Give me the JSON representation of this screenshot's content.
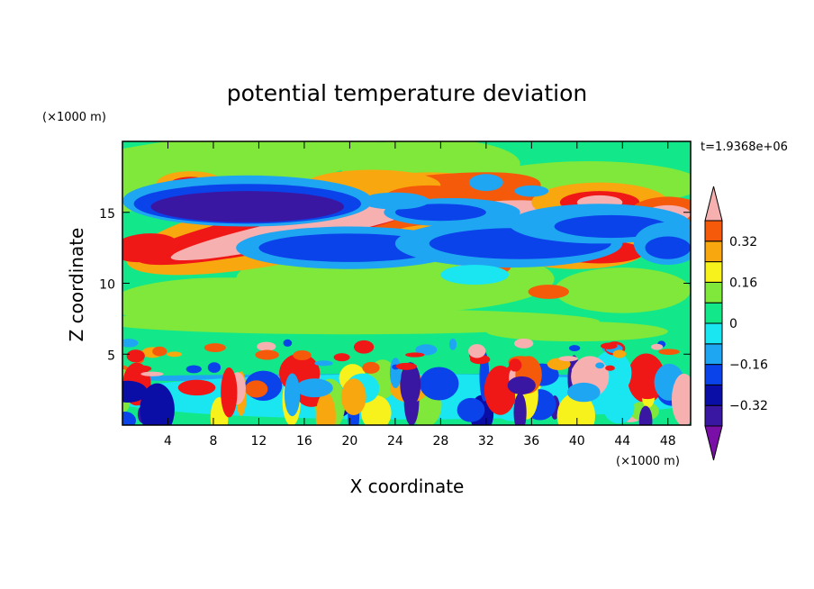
{
  "chart_data": {
    "type": "heatmap",
    "title": "potential temperature deviation",
    "xlabel": "X coordinate",
    "ylabel": "Z coordinate",
    "x_unit": "(×1000 m)",
    "y_unit": "(×1000 m)",
    "time_label": "t=1.9368e+06",
    "xlim": [
      0,
      50
    ],
    "ylim": [
      0,
      20
    ],
    "x_ticks": [
      "4",
      "8",
      "12",
      "16",
      "20",
      "24",
      "28",
      "32",
      "36",
      "40",
      "44",
      "48"
    ],
    "y_ticks": [
      "5",
      "10",
      "15"
    ],
    "colorbar": {
      "levels": [
        -0.4,
        -0.32,
        -0.24,
        -0.16,
        -0.08,
        0,
        0.08,
        0.16,
        0.24,
        0.32,
        0.4
      ],
      "colors": [
        "#7a0fa8",
        "#3a17a3",
        "#0b0ea6",
        "#0b43ea",
        "#1fa6f2",
        "#19e6f0",
        "#12e88a",
        "#7fe83a",
        "#f7f21b",
        "#f8a70f",
        "#f55a0b",
        "#f01717",
        "#f6b0b0"
      ],
      "labels": [
        "0.32",
        "0.16",
        "0",
        "−0.16",
        "−0.32"
      ],
      "label_values": [
        0.32,
        0.16,
        0,
        -0.16,
        -0.32
      ]
    },
    "background_color": "#12e88a",
    "grid": false,
    "legend": "right"
  }
}
